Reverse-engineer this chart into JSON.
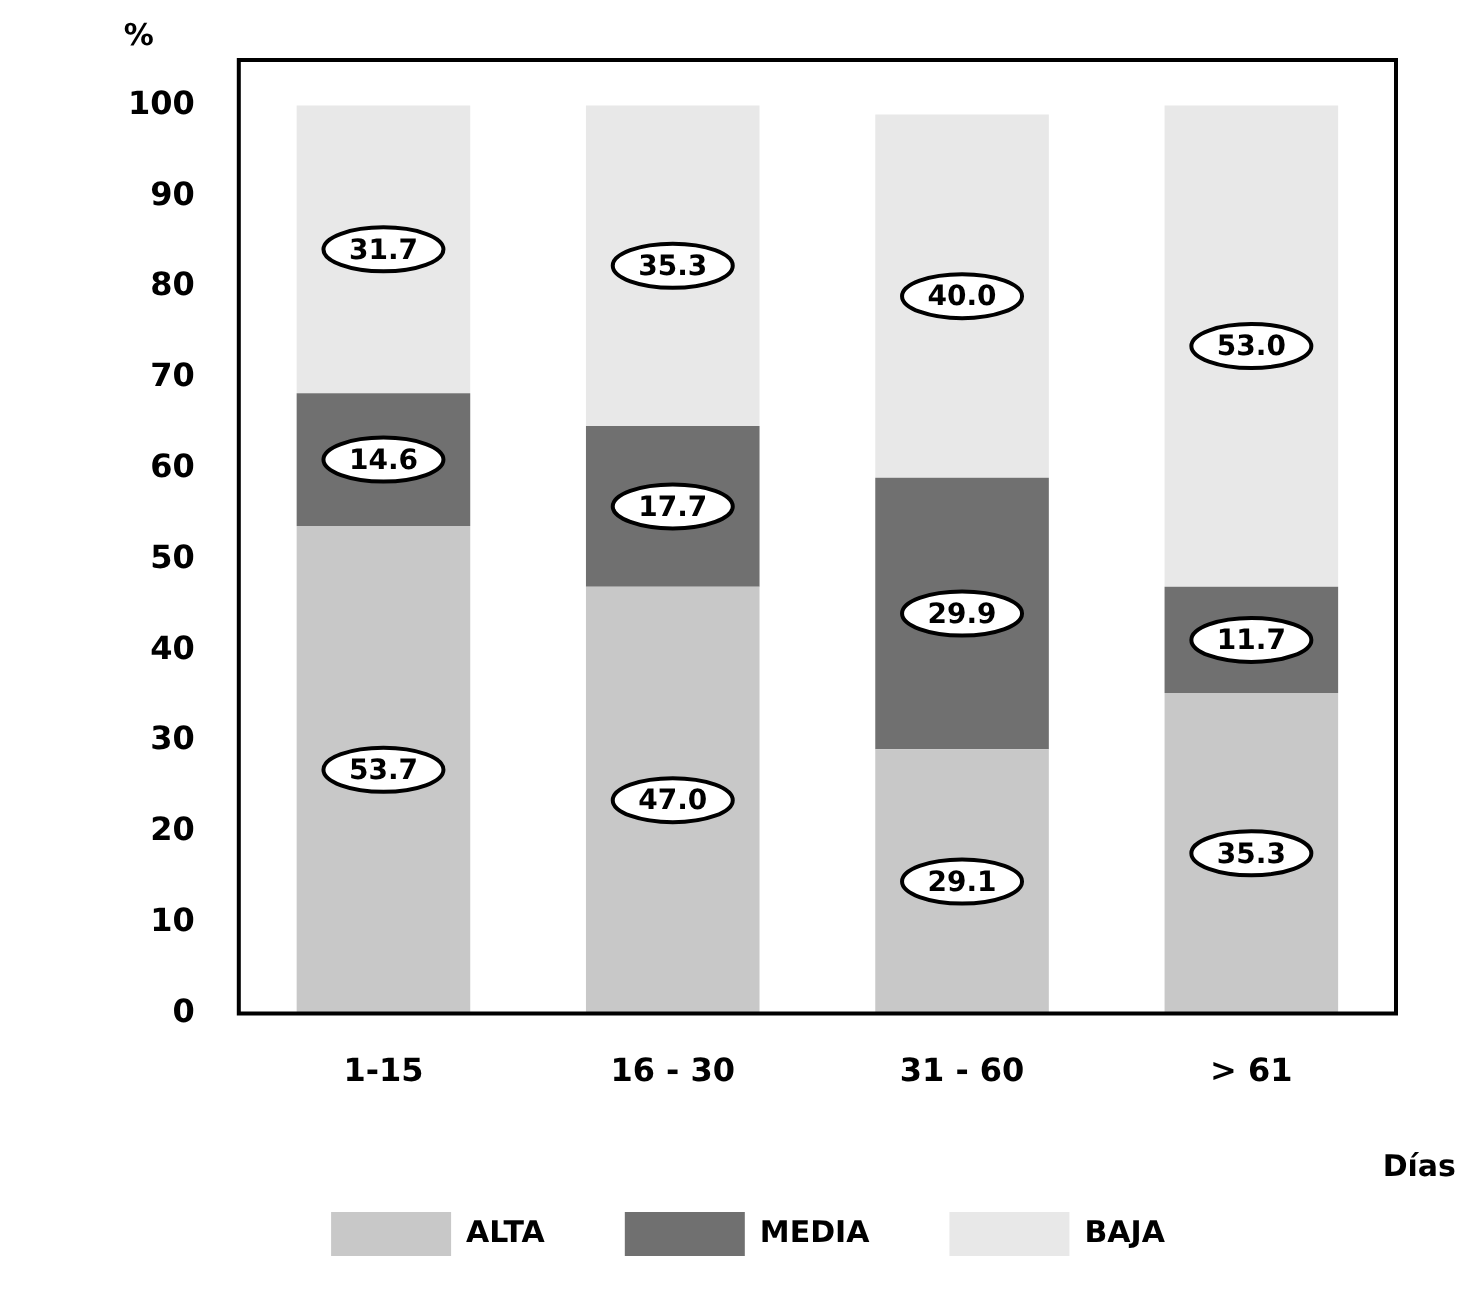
{
  "chart_data": {
    "type": "bar",
    "stacked": true,
    "ylabel": "%",
    "xlabel": "Días",
    "categories": [
      "1-15",
      "16 - 30",
      "31 - 60",
      "> 61"
    ],
    "series": [
      {
        "name": "ALTA",
        "color": "#c8c8c8",
        "values": [
          53.7,
          47.0,
          29.1,
          35.3
        ],
        "value_labels": [
          "53.7",
          "47.0",
          "29.1",
          "35.3"
        ]
      },
      {
        "name": "MEDIA",
        "color": "#707070",
        "values": [
          14.6,
          17.7,
          29.9,
          11.7
        ],
        "value_labels": [
          "14.6",
          "17.7",
          "29.9",
          "11.7"
        ]
      },
      {
        "name": "BAJA",
        "color": "#e8e8e8",
        "values": [
          31.7,
          35.3,
          40.0,
          53.0
        ],
        "value_labels": [
          "31.7",
          "35.3",
          "40.0",
          "53.0"
        ]
      }
    ],
    "ylim": [
      0,
      105
    ],
    "yticks": [
      0,
      10,
      20,
      30,
      40,
      50,
      60,
      70,
      80,
      90,
      100
    ],
    "grid": false,
    "legend": "bottom"
  }
}
